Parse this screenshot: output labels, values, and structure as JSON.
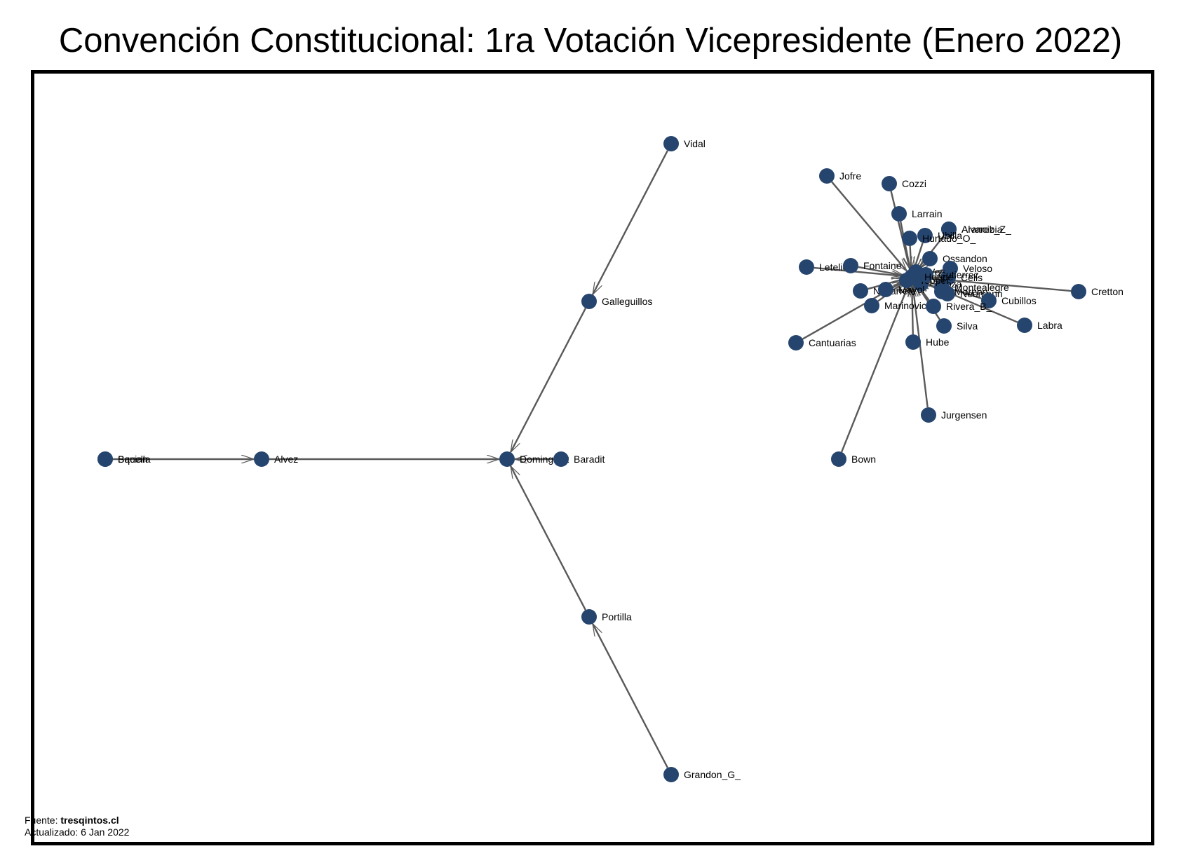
{
  "title": "Convención Constitucional: 1ra Votación Vicepresidente (Enero 2022)",
  "footer": {
    "source_label": "Fuente: ",
    "source_value": "tresqintos.cl",
    "updated_label": "Actualizado:  6 Jan 2022"
  },
  "colors": {
    "node": "#26456e",
    "edge": "#595959",
    "text": "#000000"
  },
  "nodes": [
    {
      "id": "Vidal",
      "label": "Vidal"
    },
    {
      "id": "Galleguillos",
      "label": "Galleguillos"
    },
    {
      "id": "Alvez",
      "label": "Alvez"
    },
    {
      "id": "Dominguez",
      "label": "Dominguez"
    },
    {
      "id": "Portilla",
      "label": "Portilla"
    },
    {
      "id": "Grandon_G_",
      "label": "Grandon_G_"
    },
    {
      "id": "Bown",
      "label": "Bown"
    },
    {
      "id": "Jurgensen",
      "label": "Jurgensen"
    },
    {
      "id": "Jofre",
      "label": "Jofre"
    },
    {
      "id": "Cozzi",
      "label": "Cozzi"
    },
    {
      "id": "Larrain",
      "label": "Larrain"
    },
    {
      "id": "Arancibia",
      "label": "Arancibia"
    },
    {
      "id": "Alvarez_Z_",
      "label": "Alvarez_Z_"
    },
    {
      "id": "Ubilla",
      "label": "Ubilla"
    },
    {
      "id": "Hurtado_O_",
      "label": "Hurtado_O_"
    },
    {
      "id": "Ossandon",
      "label": "Ossandon"
    },
    {
      "id": "Veloso",
      "label": "Veloso"
    },
    {
      "id": "Vega",
      "label": "Vega"
    },
    {
      "id": "Celis",
      "label": "Celis"
    },
    {
      "id": "Letelier",
      "label": "Letelier"
    },
    {
      "id": "Fontaine",
      "label": "Fontaine"
    },
    {
      "id": "Navarrete",
      "label": "Navarrete"
    },
    {
      "id": "Toloza",
      "label": "Toloza"
    },
    {
      "id": "Montealegre",
      "label": "Montealegre"
    },
    {
      "id": "Neumann",
      "label": "Neumann"
    },
    {
      "id": "Moreno",
      "label": "Moreno"
    },
    {
      "id": "Cretton",
      "label": "Cretton"
    },
    {
      "id": "Cubillos",
      "label": "Cubillos"
    },
    {
      "id": "Labra",
      "label": "Labra"
    },
    {
      "id": "Rivera_B_",
      "label": "Rivera_B_"
    },
    {
      "id": "Silva",
      "label": "Silva"
    },
    {
      "id": "Hube",
      "label": "Hube"
    },
    {
      "id": "Marinovic",
      "label": "Marinovic"
    },
    {
      "id": "Cantuarias",
      "label": "Cantuarias"
    },
    {
      "id": "Squella",
      "label": "Squella"
    },
    {
      "id": "Bacian",
      "label": "Bacian"
    },
    {
      "id": "Cluster_D",
      "label": "Baradit"
    },
    {
      "id": "Mayol",
      "label": "Mayol"
    },
    {
      "id": "Tepper",
      "label": "Tepper"
    },
    {
      "id": "Gutierrez",
      "label": "Gutierrez"
    },
    {
      "id": "Hoppe",
      "label": "Hoppe"
    }
  ],
  "edges": [
    {
      "source": "Vidal",
      "target": "Galleguillos"
    },
    {
      "source": "Galleguillos",
      "target": "Dominguez"
    },
    {
      "source": "Portilla",
      "target": "Dominguez"
    },
    {
      "source": "Grandon_G_",
      "target": "Portilla"
    },
    {
      "source": "Alvez",
      "target": "Dominguez"
    },
    {
      "source": "Squella",
      "target": "Alvez"
    },
    {
      "source": "Cluster_D",
      "target": "Dominguez"
    },
    {
      "source": "Bown",
      "target": "Hoppe"
    },
    {
      "source": "Jurgensen",
      "target": "Hoppe"
    },
    {
      "source": "Jofre",
      "target": "Hoppe"
    },
    {
      "source": "Cozzi",
      "target": "Hoppe"
    },
    {
      "source": "Larrain",
      "target": "Hoppe"
    },
    {
      "source": "Arancibia",
      "target": "Hoppe"
    },
    {
      "source": "Ubilla",
      "target": "Hoppe"
    },
    {
      "source": "Hurtado_O_",
      "target": "Hoppe"
    },
    {
      "source": "Letelier",
      "target": "Hoppe"
    },
    {
      "source": "Fontaine",
      "target": "Hoppe"
    },
    {
      "source": "Cretton",
      "target": "Hoppe"
    },
    {
      "source": "Cubillos",
      "target": "Hoppe"
    },
    {
      "source": "Labra",
      "target": "Hoppe"
    },
    {
      "source": "Rivera_B_",
      "target": "Hoppe"
    },
    {
      "source": "Silva",
      "target": "Hoppe"
    },
    {
      "source": "Hube",
      "target": "Hoppe"
    },
    {
      "source": "Marinovic",
      "target": "Hoppe"
    },
    {
      "source": "Cantuarias",
      "target": "Hoppe"
    },
    {
      "source": "Navarrete",
      "target": "Hoppe"
    },
    {
      "source": "Ossandon",
      "target": "Hoppe"
    },
    {
      "source": "Veloso",
      "target": "Hoppe"
    },
    {
      "source": "Neumann",
      "target": "Hoppe"
    },
    {
      "source": "Toloza",
      "target": "Hoppe"
    },
    {
      "source": "Celis",
      "target": "Hoppe"
    }
  ]
}
